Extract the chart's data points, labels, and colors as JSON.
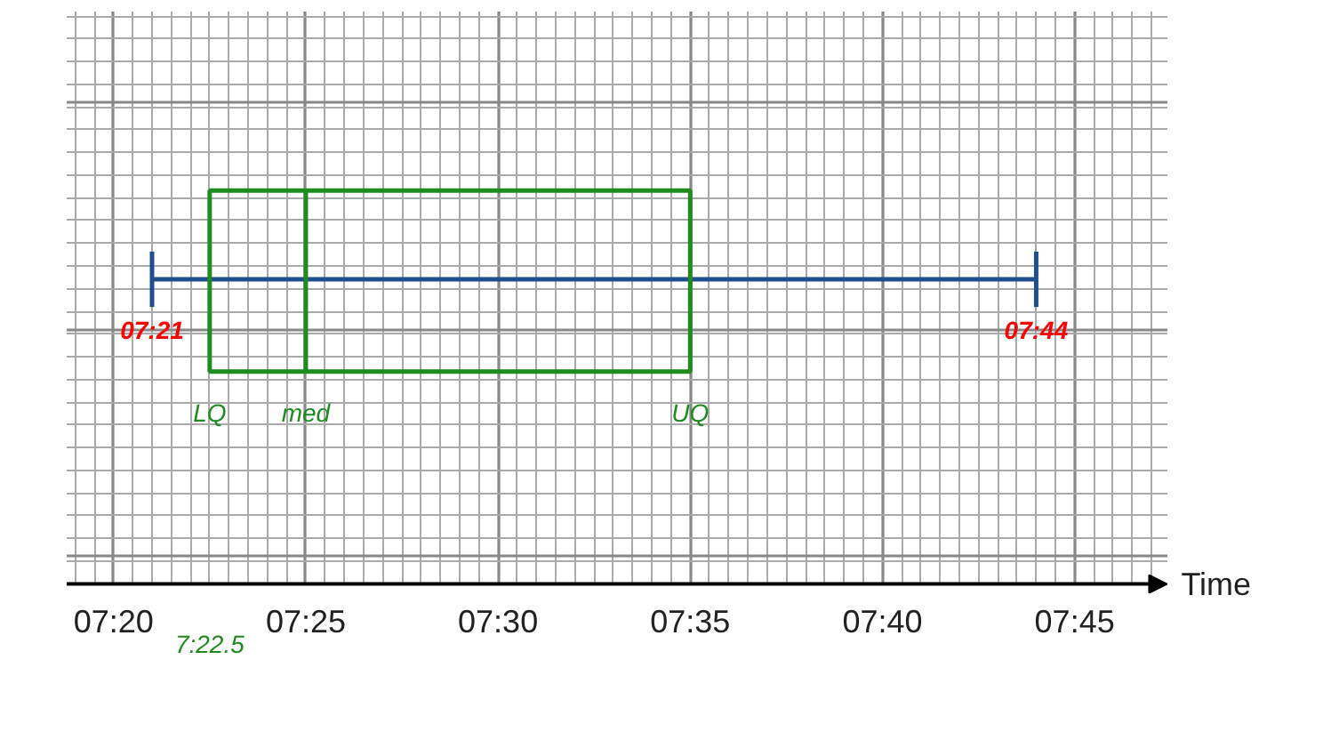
{
  "chart_data": {
    "type": "box",
    "orientation": "horizontal",
    "xlabel": "Time",
    "categories": [
      null
    ],
    "series": [
      {
        "color": "#1e8c1e",
        "boxes": [
          {
            "low": 7.35,
            "q1": 7.375,
            "median": 7.416667,
            "q3": 7.583333,
            "high": 7.733333
          }
        ]
      }
    ],
    "xlim": [
      7.313,
      7.79
    ],
    "xticks": [
      {
        "value": 7.333333,
        "label": "07:20"
      },
      {
        "value": 7.416667,
        "label": "07:25"
      },
      {
        "value": 7.5,
        "label": "07:30"
      },
      {
        "value": 7.583333,
        "label": "07:35"
      },
      {
        "value": 7.666667,
        "label": "07:40"
      },
      {
        "value": 7.75,
        "label": "07:45"
      }
    ],
    "annotations": [
      "07:21",
      "07:44",
      "LQ",
      "med",
      "UQ",
      "7:22.5"
    ],
    "grid": true,
    "tick_labels": "x"
  }
}
